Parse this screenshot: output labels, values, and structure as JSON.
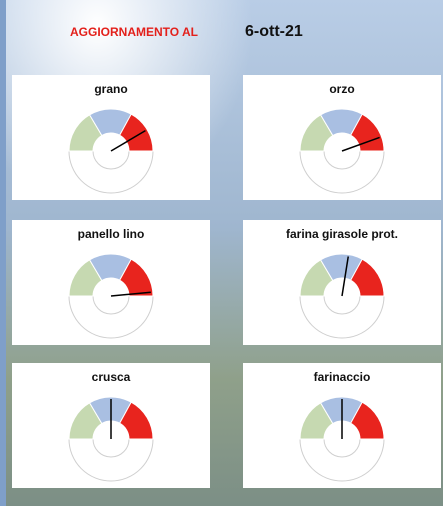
{
  "header": {
    "title": "AGGIORNAMENTO AL",
    "date": "6-ott-21"
  },
  "chart_data": [
    {
      "type": "gauge",
      "title": "grano",
      "range": [
        0,
        100
      ],
      "values": [
        33,
        33,
        34
      ],
      "colors": [
        "#c6d9b1",
        "#a9bfe2",
        "#e8241e"
      ],
      "needle": 83
    },
    {
      "type": "gauge",
      "title": "orzo",
      "range": [
        0,
        100
      ],
      "values": [
        33,
        33,
        34
      ],
      "colors": [
        "#c6d9b1",
        "#a9bfe2",
        "#e8241e"
      ],
      "needle": 89
    },
    {
      "type": "gauge",
      "title": "panello lino",
      "range": [
        0,
        100
      ],
      "values": [
        33,
        33,
        34
      ],
      "colors": [
        "#c6d9b1",
        "#a9bfe2",
        "#e8241e"
      ],
      "needle": 97
    },
    {
      "type": "gauge",
      "title": "farina girasole prot.",
      "range": [
        0,
        100
      ],
      "values": [
        33,
        33,
        34
      ],
      "colors": [
        "#c6d9b1",
        "#a9bfe2",
        "#e8241e"
      ],
      "needle": 55
    },
    {
      "type": "gauge",
      "title": "crusca",
      "range": [
        0,
        100
      ],
      "values": [
        33,
        33,
        34
      ],
      "colors": [
        "#c6d9b1",
        "#a9bfe2",
        "#e8241e"
      ],
      "needle": 50
    },
    {
      "type": "gauge",
      "title": "farinaccio",
      "range": [
        0,
        100
      ],
      "values": [
        33,
        33,
        34
      ],
      "colors": [
        "#c6d9b1",
        "#a9bfe2",
        "#e8241e"
      ],
      "needle": 50
    }
  ]
}
